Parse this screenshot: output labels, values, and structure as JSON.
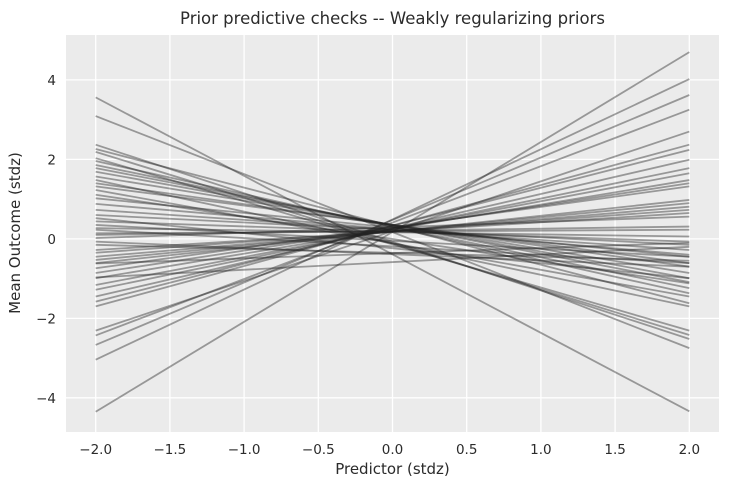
{
  "chart_data": {
    "type": "line",
    "title": "Prior predictive checks -- Weakly regularizing priors",
    "xlabel": "Predictor (stdz)",
    "ylabel": "Mean Outcome (stdz)",
    "xlim": [
      -2.2,
      2.2
    ],
    "ylim": [
      -4.86,
      5.13
    ],
    "x_ticks": {
      "values": [
        -2.0,
        -1.5,
        -1.0,
        -0.5,
        0.0,
        0.5,
        1.0,
        1.5,
        2.0
      ],
      "labels": [
        "−2.0",
        "−1.5",
        "−1.0",
        "−0.5",
        "0.0",
        "0.5",
        "1.0",
        "1.5",
        "2.0"
      ]
    },
    "y_ticks": {
      "values": [
        -4,
        -2,
        0,
        2,
        4
      ],
      "labels": [
        "−4",
        "−2",
        "0",
        "2",
        "4"
      ]
    },
    "grid": true,
    "legend": "none",
    "n_lines": 50,
    "lines": {
      "description": "50 prior predictive regression draws; straight lines, y values given at x = -2 and x = +2 (stdz units, estimated from plot)",
      "x": [
        -2,
        2
      ],
      "y_pairs": [
        [
          -4.35,
          4.7
        ],
        [
          -3.04,
          4.02
        ],
        [
          -2.67,
          3.62
        ],
        [
          -2.43,
          3.25
        ],
        [
          -2.31,
          2.7
        ],
        [
          3.56,
          -4.34
        ],
        [
          3.09,
          -2.75
        ],
        [
          2.37,
          -2.52
        ],
        [
          2.19,
          -2.42
        ],
        [
          2.03,
          -2.31
        ],
        [
          2.26,
          -1.62
        ],
        [
          -1.7,
          2.37
        ],
        [
          -1.58,
          2.24
        ],
        [
          -1.45,
          1.99
        ],
        [
          -1.28,
          1.78
        ],
        [
          -1.16,
          1.65
        ],
        [
          -0.99,
          1.48
        ],
        [
          -0.86,
          1.4
        ],
        [
          -0.74,
          1.32
        ],
        [
          -0.61,
          0.98
        ],
        [
          -0.53,
          0.9
        ],
        [
          1.96,
          -1.37
        ],
        [
          1.86,
          -1.24
        ],
        [
          1.78,
          -1.09
        ],
        [
          1.69,
          -0.99
        ],
        [
          1.57,
          -0.86
        ],
        [
          1.48,
          -1.7
        ],
        [
          1.4,
          -0.7
        ],
        [
          1.32,
          -0.61
        ],
        [
          1.23,
          -1.45
        ],
        [
          1.11,
          -1.12
        ],
        [
          1.02,
          -0.45
        ],
        [
          0.88,
          -0.4
        ],
        [
          -0.45,
          0.81
        ],
        [
          -0.35,
          0.73
        ],
        [
          -0.28,
          0.65
        ],
        [
          0.73,
          -0.28
        ],
        [
          0.6,
          -0.15
        ],
        [
          0.52,
          -0.99
        ],
        [
          0.44,
          -0.07
        ],
        [
          0.35,
          -0.45
        ],
        [
          0.27,
          0.06
        ],
        [
          0.23,
          -0.61
        ],
        [
          0.14,
          0.23
        ],
        [
          0.1,
          0.31
        ],
        [
          0.02,
          0.56
        ],
        [
          -0.07,
          -0.7
        ],
        [
          -0.15,
          -0.55
        ],
        [
          -0.62,
          -0.1
        ],
        [
          -0.97,
          -0.2
        ]
      ]
    },
    "style": {
      "figure_bg": "#ffffff",
      "axes_bg": "#ebebeb",
      "grid_color": "#ffffff",
      "line_color": "rgba(35,35,35,0.42)",
      "line_width": 1.8,
      "text_color": "#2b2b2b",
      "tick_font_size": 13.5
    }
  }
}
